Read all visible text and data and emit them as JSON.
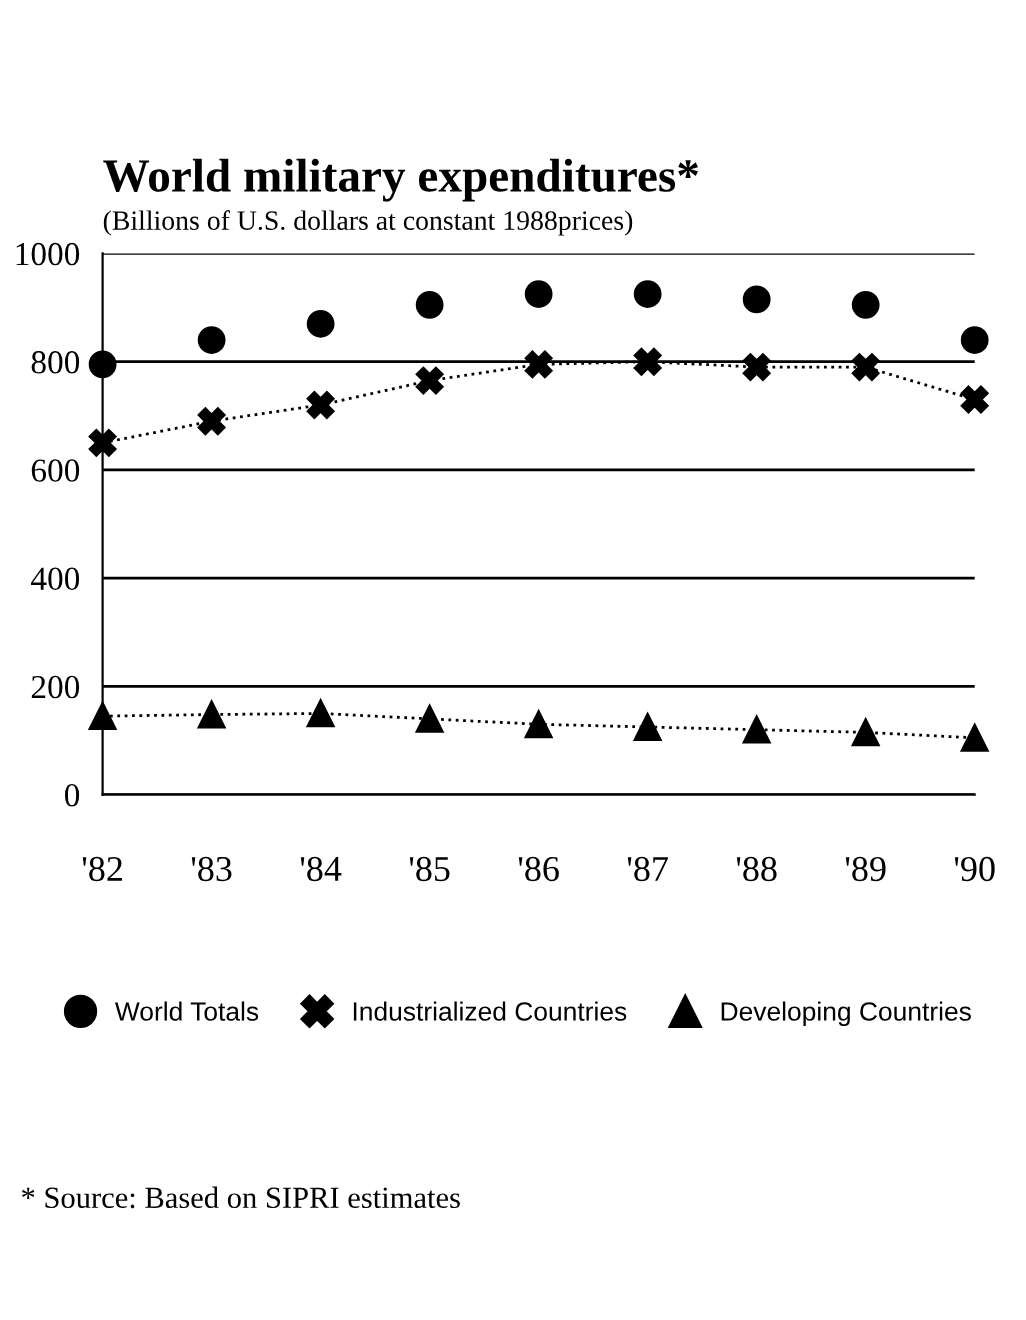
{
  "chart_data": {
    "type": "line",
    "title": "World military expenditures*",
    "subtitle": "(Billions of U.S. dollars at constant 1988prices)",
    "categories": [
      "'82",
      "'83",
      "'84",
      "'85",
      "'86",
      "'87",
      "'88",
      "'89",
      "'90"
    ],
    "series": [
      {
        "name": "World Totals",
        "type": "scatter",
        "color": "#000000",
        "marker": "circle",
        "values": [
          795,
          840,
          870,
          905,
          925,
          925,
          915,
          905,
          840
        ]
      },
      {
        "name": "Industrialized Countries",
        "color": "#000000",
        "marker": "cross",
        "line_style": "dotted",
        "values": [
          650,
          690,
          720,
          765,
          795,
          800,
          790,
          790,
          730
        ]
      },
      {
        "name": "Developing Countries",
        "color": "#000000",
        "marker": "triangle",
        "line_style": "dotted",
        "values": [
          145,
          148,
          150,
          140,
          130,
          125,
          120,
          115,
          105
        ]
      }
    ],
    "ylim": [
      0,
      1000
    ],
    "yticks": [
      0,
      200,
      400,
      600,
      800,
      1000
    ],
    "grid": "y",
    "legend": "bottom",
    "annotations": [
      "* Source: Based on SIPRI estimates"
    ]
  }
}
